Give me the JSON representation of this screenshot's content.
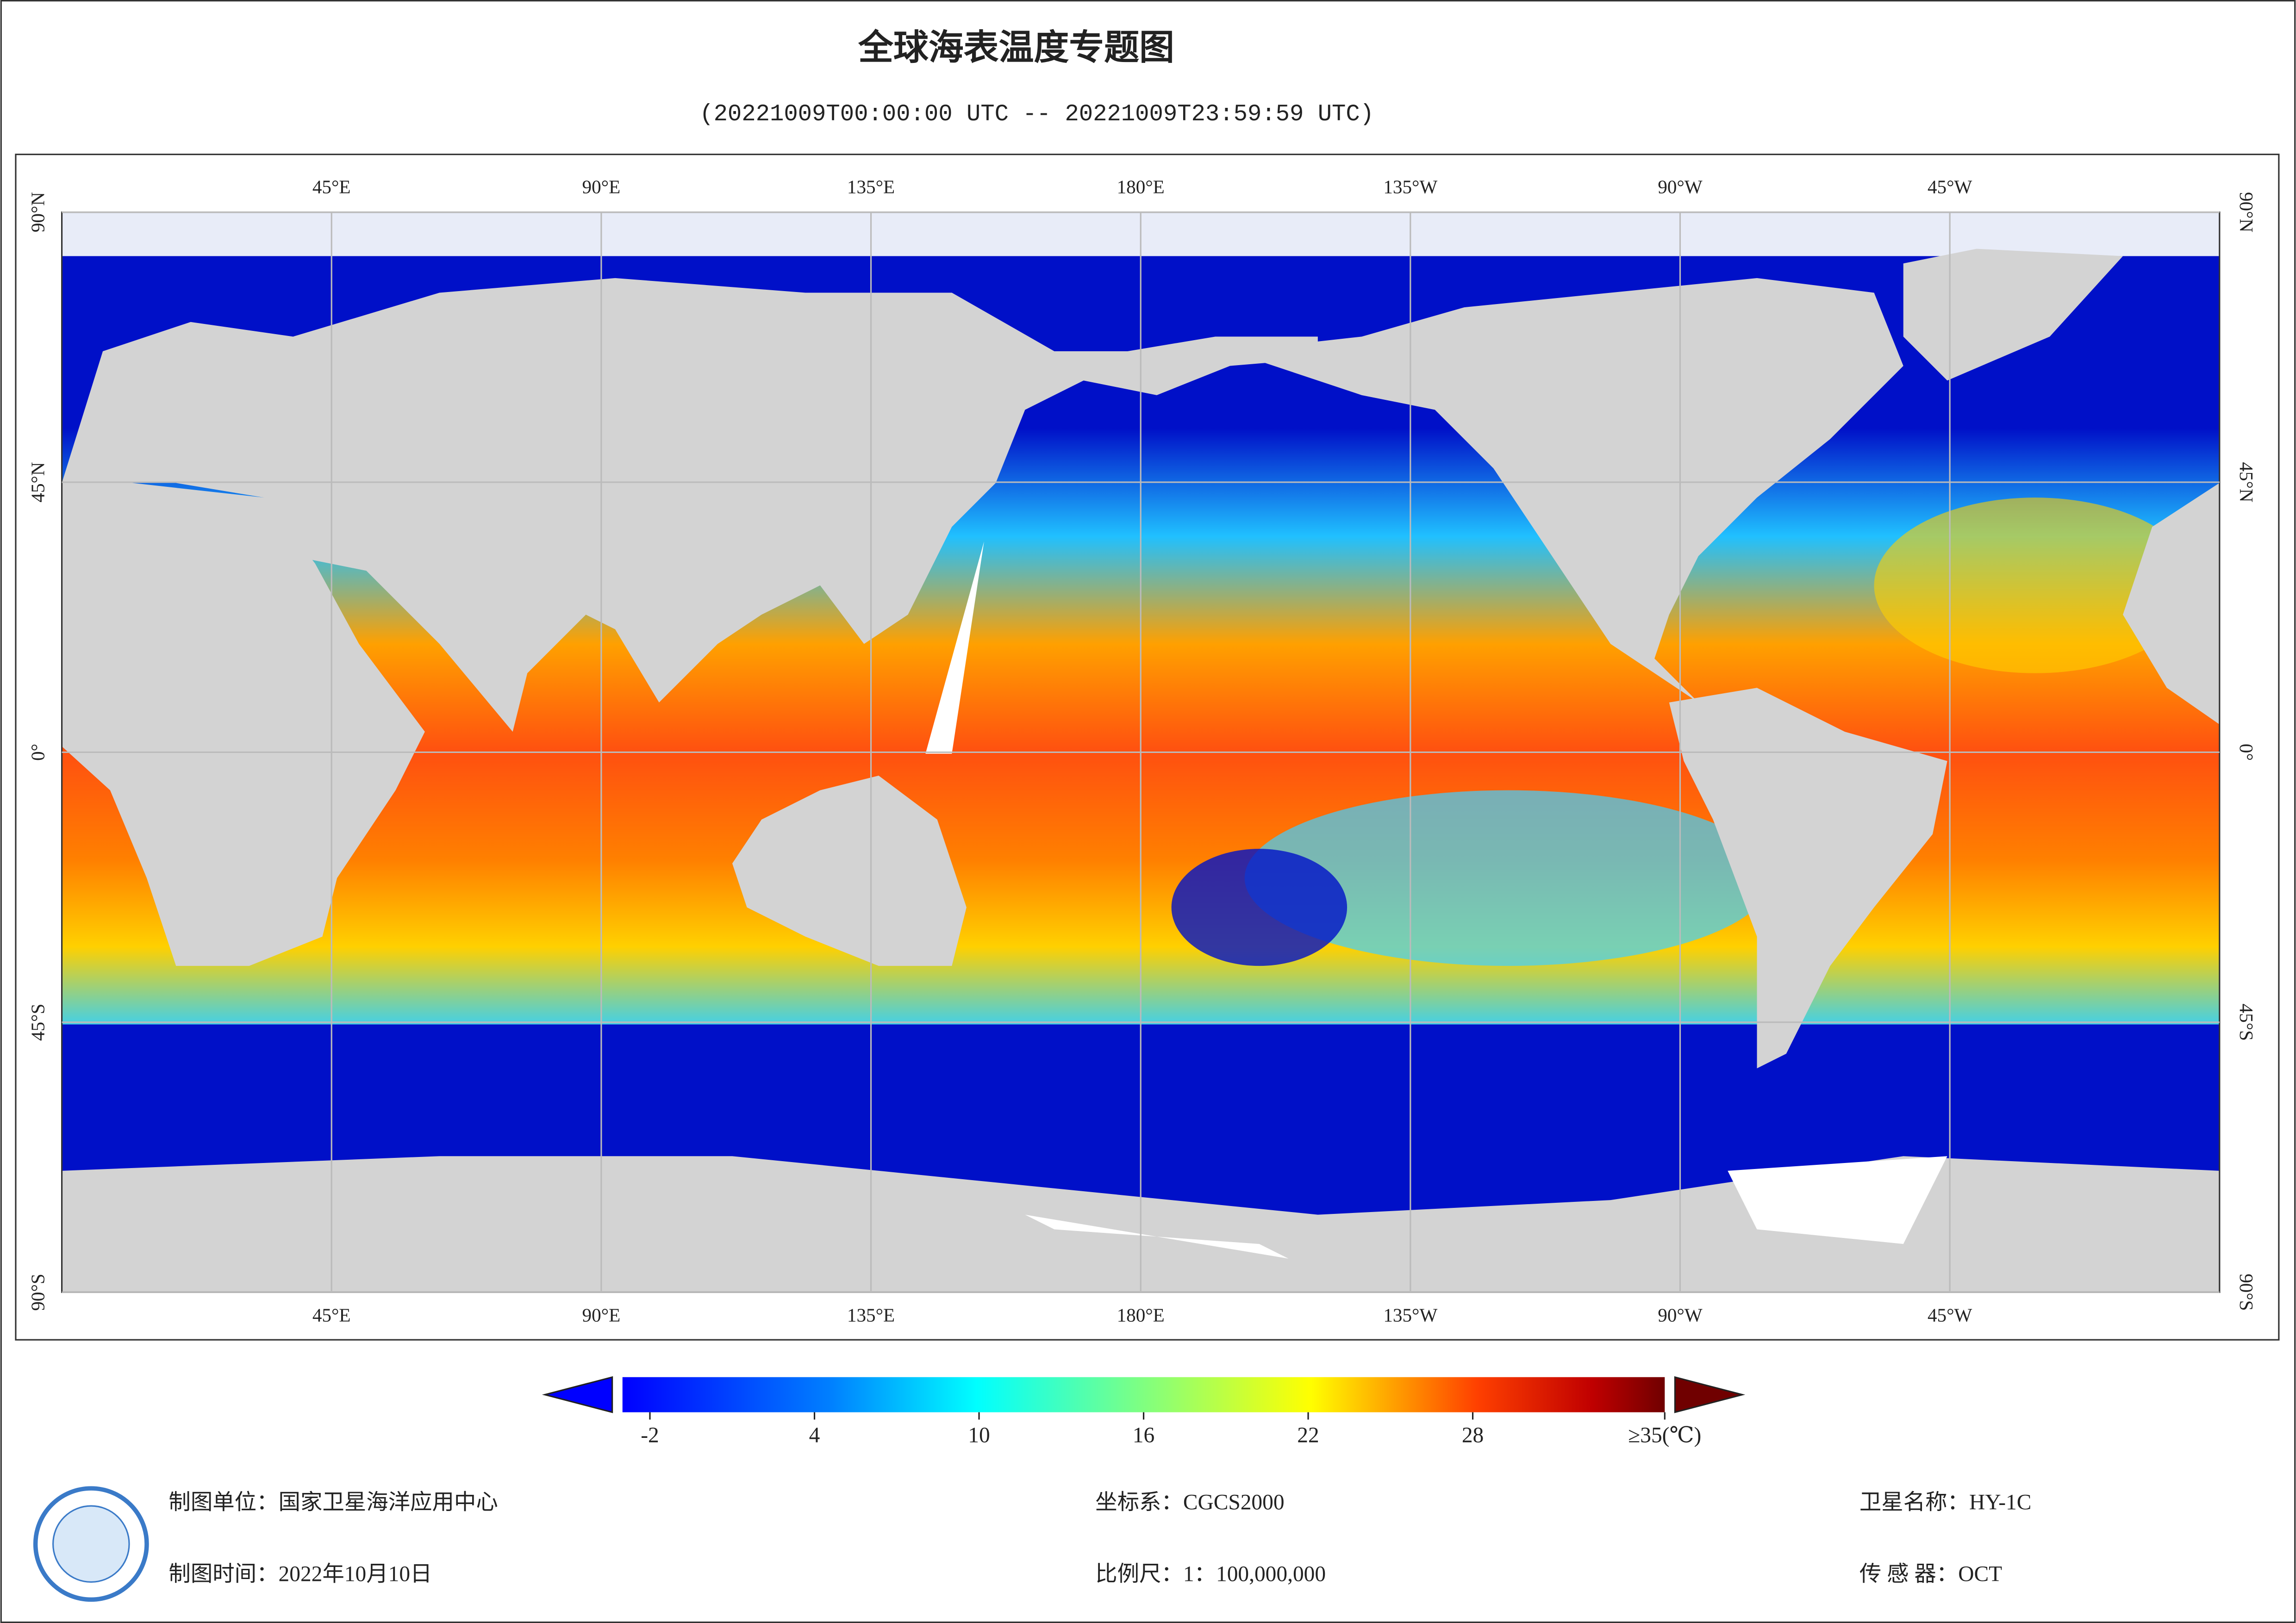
{
  "header": {
    "title": "全球海表温度专题图",
    "subtitle": "(20221009T00:00:00 UTC -- 20221009T23:59:59 UTC)"
  },
  "map": {
    "lon_ticks": [
      {
        "value": 45,
        "label": "45°E"
      },
      {
        "value": 90,
        "label": "90°E"
      },
      {
        "value": 135,
        "label": "135°E"
      },
      {
        "value": 180,
        "label": "180°E"
      },
      {
        "value": 225,
        "label": "135°W"
      },
      {
        "value": 270,
        "label": "90°W"
      },
      {
        "value": 315,
        "label": "45°W"
      }
    ],
    "lat_ticks": [
      {
        "value": 90,
        "label": "90°N"
      },
      {
        "value": 45,
        "label": "45°N"
      },
      {
        "value": 0,
        "label": "0°"
      },
      {
        "value": -45,
        "label": "45°S"
      },
      {
        "value": -90,
        "label": "90°S"
      }
    ]
  },
  "colorbar": {
    "range": [
      -3,
      35
    ],
    "ticks": [
      -2,
      4,
      10,
      16,
      22,
      28,
      {
        "value": 35,
        "label": "≥35(℃)"
      }
    ]
  },
  "footer": {
    "unit": "制图单位：国家卫星海洋应用中心",
    "time": "制图时间：2022年10月10日",
    "crs": "坐标系：CGCS2000",
    "scale": "比例尺：1：100,000,000",
    "satellite": "卫星名称：HY-1C",
    "sensor": "传 感 器：OCT"
  }
}
